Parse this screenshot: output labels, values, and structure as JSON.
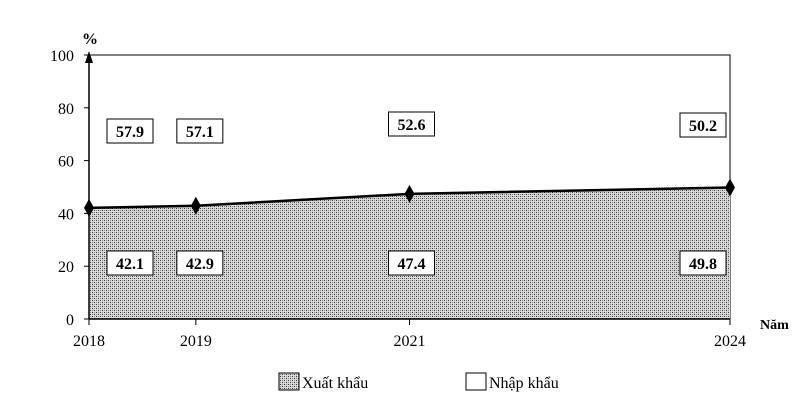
{
  "chart_data": {
    "type": "area",
    "y_unit": "%",
    "x_unit": "Năm",
    "x": [
      "2018",
      "2019",
      "2021",
      "2024"
    ],
    "ylim": [
      0,
      100
    ],
    "yticks": [
      "0",
      "20",
      "40",
      "60",
      "80",
      "100"
    ],
    "series": [
      {
        "name": "Xuất khẩu",
        "values": [
          42.1,
          42.9,
          47.4,
          49.8
        ],
        "fill": "dotted-gray"
      },
      {
        "name": "Nhập khẩu",
        "values": [
          57.9,
          57.1,
          52.6,
          50.2
        ],
        "fill": "white"
      }
    ],
    "legend": [
      "Xuất khẩu",
      "Nhập khẩu"
    ],
    "legend_position": "bottom",
    "grid": false
  }
}
